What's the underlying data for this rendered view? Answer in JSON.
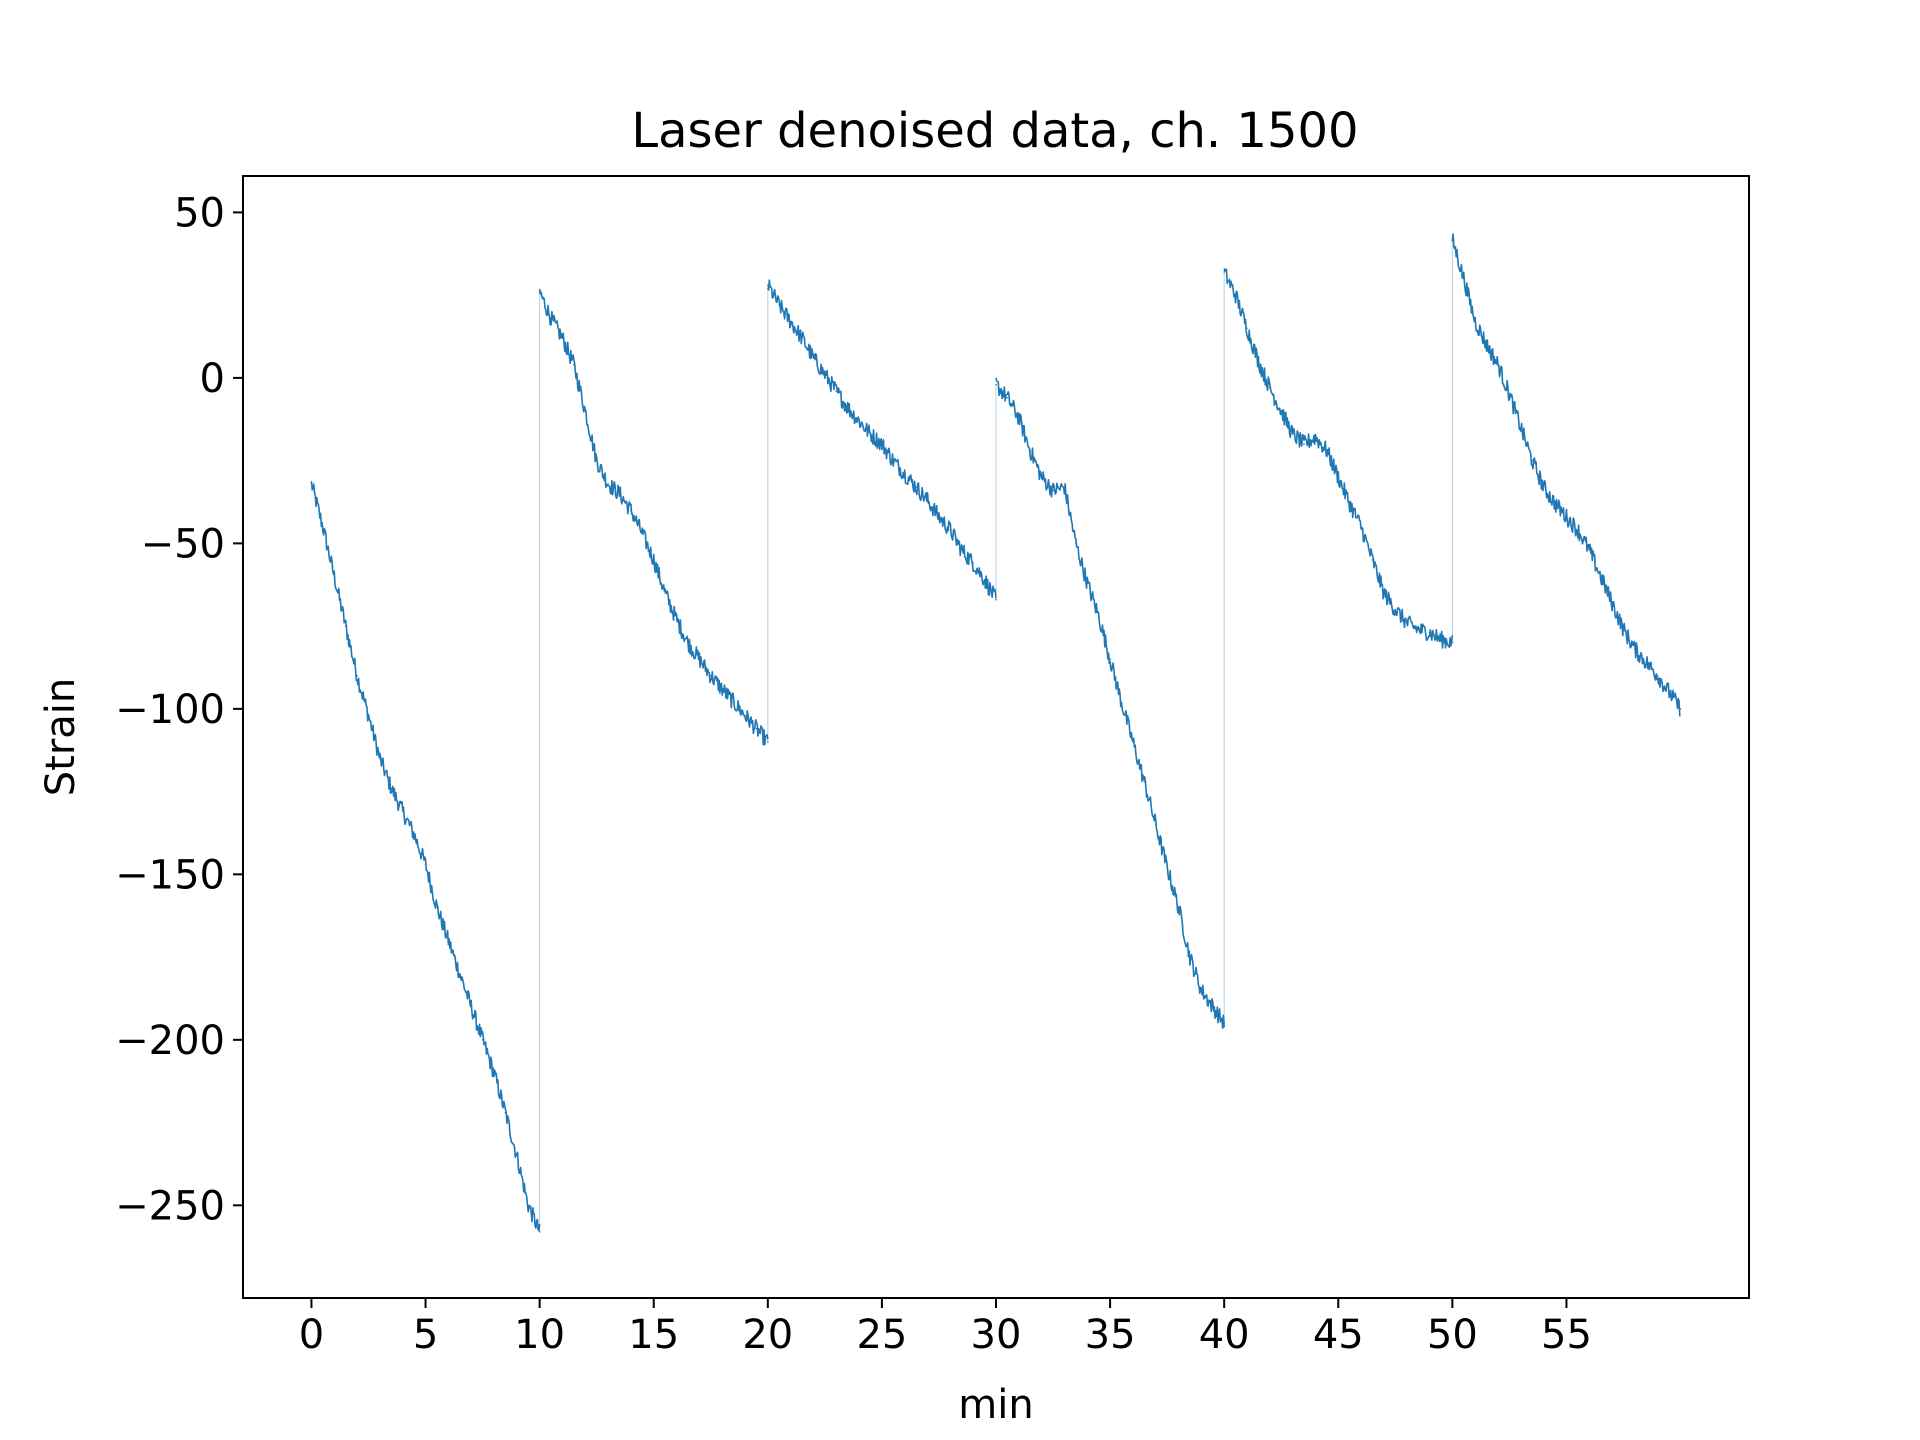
{
  "chart_data": {
    "type": "line",
    "title": "Laser denoised data, ch. 1500",
    "xlabel": "min",
    "ylabel": "Strain",
    "xlim": [
      -3,
      63
    ],
    "ylim": [
      -278,
      61
    ],
    "xticks": [
      0,
      5,
      10,
      15,
      20,
      25,
      30,
      35,
      40,
      45,
      50,
      55
    ],
    "xtick_labels": [
      "0",
      "5",
      "10",
      "15",
      "20",
      "25",
      "30",
      "35",
      "40",
      "45",
      "50",
      "55"
    ],
    "yticks": [
      50,
      0,
      -50,
      -100,
      -150,
      -200,
      -250
    ],
    "ytick_labels": [
      "50",
      "0",
      "−50",
      "−100",
      "−150",
      "−200",
      "−250"
    ],
    "grid": false,
    "line_color": "#1f77b4",
    "series": [
      {
        "segments": [
          {
            "x": [
              0,
              0.5,
              1,
              1.5,
              2,
              2.5,
              3,
              3.5,
              4,
              4.5,
              5,
              5.5,
              6,
              6.5,
              7,
              7.5,
              8,
              8.5,
              9,
              9.5,
              10
            ],
            "y": [
              -32,
              -45,
              -60,
              -75,
              -90,
              -102,
              -115,
              -124,
              -131,
              -138,
              -147,
              -160,
              -170,
              -180,
              -190,
              -200,
              -210,
              -222,
              -235,
              -250,
              -258
            ]
          },
          {
            "x": [
              10,
              10.5,
              11,
              11.5,
              12,
              12.5,
              13,
              13.5,
              14,
              14.5,
              15,
              15.5,
              16,
              16.5,
              17,
              17.5,
              18,
              18.5,
              19,
              19.5,
              20
            ],
            "y": [
              26,
              18,
              12,
              4,
              -10,
              -25,
              -32,
              -35,
              -40,
              -47,
              -55,
              -65,
              -73,
              -80,
              -85,
              -90,
              -94,
              -98,
              -102,
              -106,
              -110
            ]
          },
          {
            "x": [
              20,
              20.5,
              21,
              21.5,
              22,
              22.5,
              23,
              23.5,
              24,
              24.5,
              25,
              25.5,
              26,
              26.5,
              27,
              27.5,
              28,
              28.5,
              29,
              29.5,
              30
            ],
            "y": [
              28,
              22,
              17,
              12,
              6,
              1,
              -4,
              -9,
              -13,
              -17,
              -20,
              -25,
              -29,
              -33,
              -37,
              -42,
              -46,
              -52,
              -56,
              -61,
              -67
            ]
          },
          {
            "x": [
              30,
              30.5,
              31,
              31.5,
              32,
              32.5,
              33,
              33.5,
              34,
              34.5,
              35,
              35.5,
              36,
              36.5,
              37,
              37.5,
              38,
              38.5,
              39,
              39.5,
              40
            ],
            "y": [
              -2,
              -6,
              -12,
              -22,
              -30,
              -34,
              -33,
              -50,
              -62,
              -72,
              -85,
              -98,
              -110,
              -122,
              -135,
              -148,
              -160,
              -175,
              -185,
              -190,
              -195
            ]
          },
          {
            "x": [
              40,
              40.5,
              41,
              41.5,
              42,
              42.5,
              43,
              43.5,
              44,
              44.5,
              45,
              45.5,
              46,
              46.5,
              47,
              47.5,
              48,
              48.5,
              49,
              49.5,
              50
            ],
            "y": [
              32,
              25,
              15,
              5,
              -3,
              -10,
              -17,
              -20,
              -18,
              -22,
              -30,
              -38,
              -45,
              -55,
              -65,
              -70,
              -74,
              -76,
              -77,
              -79,
              -80
            ]
          },
          {
            "x": [
              50,
              50.5,
              51,
              51.5,
              52,
              52.5,
              53,
              53.5,
              54,
              54.5,
              55,
              55.5,
              56,
              56.5,
              57,
              57.5,
              58,
              58.5,
              59,
              59.5,
              60
            ],
            "y": [
              42,
              30,
              17,
              10,
              4,
              -5,
              -15,
              -25,
              -33,
              -38,
              -42,
              -46,
              -52,
              -60,
              -68,
              -76,
              -82,
              -86,
              -90,
              -95,
              -100
            ]
          }
        ]
      }
    ]
  }
}
